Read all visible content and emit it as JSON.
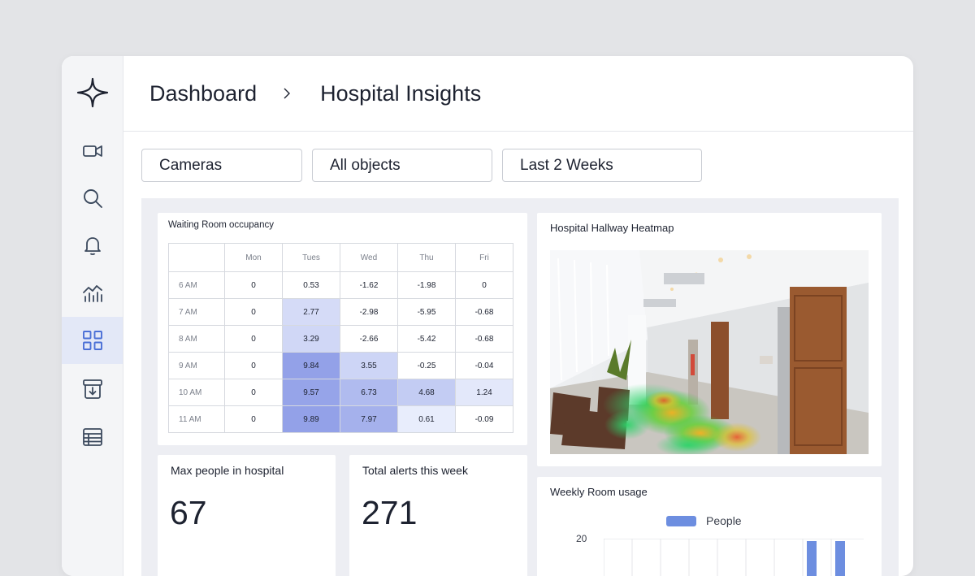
{
  "breadcrumb": {
    "root": "Dashboard",
    "current": "Hospital Insights"
  },
  "filters": {
    "camera": "Cameras",
    "objects": "All objects",
    "range": "Last 2 Weeks"
  },
  "sidebar": {
    "items": [
      {
        "name": "video-camera-icon",
        "active": false
      },
      {
        "name": "search-icon",
        "active": false
      },
      {
        "name": "bell-icon",
        "active": false
      },
      {
        "name": "analytics-chart-icon",
        "active": false
      },
      {
        "name": "grid-icon",
        "active": true
      },
      {
        "name": "archive-download-icon",
        "active": false
      },
      {
        "name": "table-icon",
        "active": false
      }
    ]
  },
  "occupancy": {
    "title": "Waiting Room occupancy",
    "columns": [
      "Mon",
      "Tues",
      "Wed",
      "Thu",
      "Fri"
    ],
    "rows": [
      {
        "label": "6 AM",
        "values": [
          "0",
          "0.53",
          "-1.62",
          "-1.98",
          "0"
        ]
      },
      {
        "label": "7 AM",
        "values": [
          "0",
          "2.77",
          "-2.98",
          "-5.95",
          "-0.68"
        ]
      },
      {
        "label": "8 AM",
        "values": [
          "0",
          "3.29",
          "-2.66",
          "-5.42",
          "-0.68"
        ]
      },
      {
        "label": "9 AM",
        "values": [
          "0",
          "9.84",
          "3.55",
          "-0.25",
          "-0.04"
        ]
      },
      {
        "label": "10 AM",
        "values": [
          "0",
          "9.57",
          "6.73",
          "4.68",
          "1.24"
        ]
      },
      {
        "label": "11 AM",
        "values": [
          "0",
          "9.89",
          "7.97",
          "0.61",
          "-0.09"
        ]
      }
    ]
  },
  "heatmap": {
    "title": "Hospital Hallway Heatmap"
  },
  "stats": {
    "max_people": {
      "label": "Max people in hospital",
      "value": "67"
    },
    "alerts": {
      "label": "Total alerts this week",
      "value": "271"
    }
  },
  "weekly_usage": {
    "title": "Weekly Room usage",
    "legend": "People",
    "legend_color": "#6d8ee0",
    "y_tick": "20"
  },
  "colors": {
    "accent": "#6d8ee0",
    "active_nav_bg": "#e3e8f7",
    "icon": "#3c4a5e"
  }
}
